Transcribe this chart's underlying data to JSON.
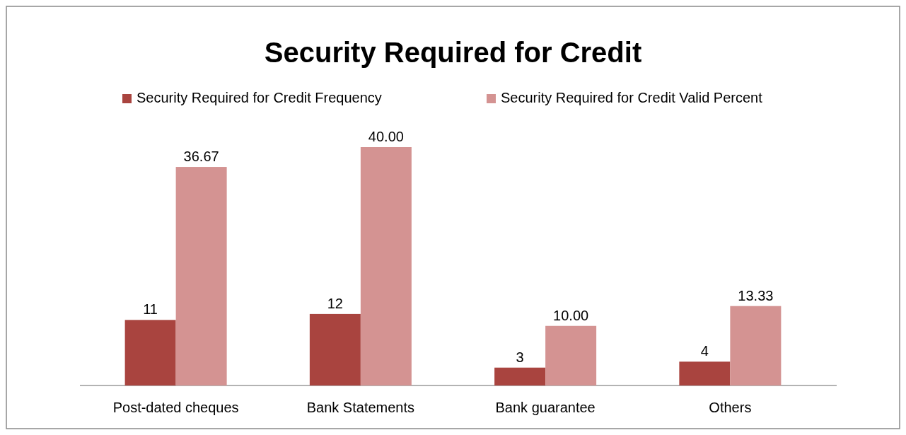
{
  "chart_data": {
    "type": "bar",
    "title": "Security Required for Credit",
    "categories": [
      "Post-dated cheques",
      "Bank Statements",
      "Bank guarantee",
      "Others"
    ],
    "series": [
      {
        "name": "Security Required for Credit Frequency",
        "color": "#a9443f",
        "values": [
          11,
          12,
          3,
          4
        ],
        "value_labels": [
          "11",
          "12",
          "3",
          "4"
        ]
      },
      {
        "name": "Security Required for Credit Valid Percent",
        "color": "#d49392",
        "values": [
          36.67,
          40,
          10,
          13.33
        ],
        "value_labels": [
          "36.67",
          "40.00",
          "10.00",
          "13.33"
        ]
      }
    ],
    "legend": "top",
    "grid": false
  }
}
